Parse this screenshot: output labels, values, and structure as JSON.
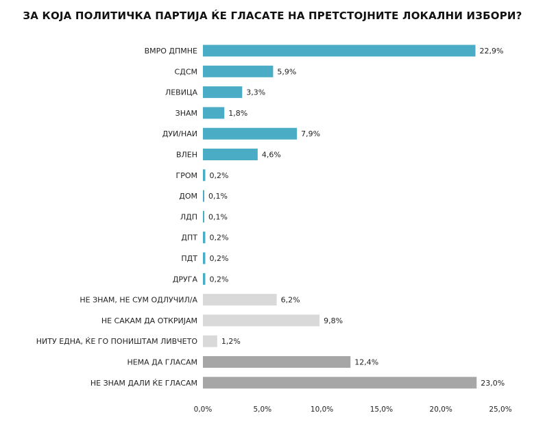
{
  "chart_data": {
    "type": "bar",
    "orientation": "horizontal",
    "title": "ЗА КОЈА ПОЛИТИЧКА ПАРТИЈА ЌЕ ГЛАСАТЕ НА ПРЕТСТОЈНИТЕ ЛОКАЛНИ ИЗБОРИ?",
    "xlabel": "",
    "ylabel": "",
    "xlim": [
      0,
      25
    ],
    "grid": false,
    "legend": "none",
    "categories": [
      "ВМРО ДПМНЕ",
      "СДСМ",
      "ЛЕВИЦА",
      "ЗНАМ",
      "ДУИ/НАИ",
      "ВЛЕН",
      "ГРОМ",
      "ДОМ",
      "ЛДП",
      "ДПТ",
      "ПДТ",
      "ДРУГА",
      "НЕ ЗНАМ, НЕ СУМ ОДЛУЧИЛ/А",
      "НЕ САКАМ ДА ОТКРИЈАМ",
      "НИТУ ЕДНА, ЌЕ ГО ПОНИШТАМ ЛИВЧЕТО",
      "НЕМА ДА ГЛАСАМ",
      "НЕ ЗНАМ ДАЛИ ЌЕ ГЛАСАМ"
    ],
    "values": [
      22.9,
      5.9,
      3.3,
      1.8,
      7.9,
      4.6,
      0.2,
      0.1,
      0.1,
      0.2,
      0.2,
      0.2,
      6.2,
      9.8,
      1.2,
      12.4,
      23.0
    ],
    "value_labels": [
      "22,9%",
      "5,9%",
      "3,3%",
      "1,8%",
      "7,9%",
      "4,6%",
      "0,2%",
      "0,1%",
      "0,1%",
      "0,2%",
      "0,2%",
      "0,2%",
      "6,2%",
      "9,8%",
      "1,2%",
      "12,4%",
      "23,0%"
    ],
    "bar_colors": [
      "#4bacc6",
      "#4bacc6",
      "#4bacc6",
      "#4bacc6",
      "#4bacc6",
      "#4bacc6",
      "#4bacc6",
      "#4bacc6",
      "#4bacc6",
      "#4bacc6",
      "#4bacc6",
      "#4bacc6",
      "#d9d9d9",
      "#d9d9d9",
      "#d9d9d9",
      "#a6a6a6",
      "#a6a6a6"
    ],
    "ticks": [
      0,
      5,
      10,
      15,
      20,
      25
    ],
    "tick_labels": [
      "0,0%",
      "5,0%",
      "10,0%",
      "15,0%",
      "20,0%",
      "25,0%"
    ]
  }
}
